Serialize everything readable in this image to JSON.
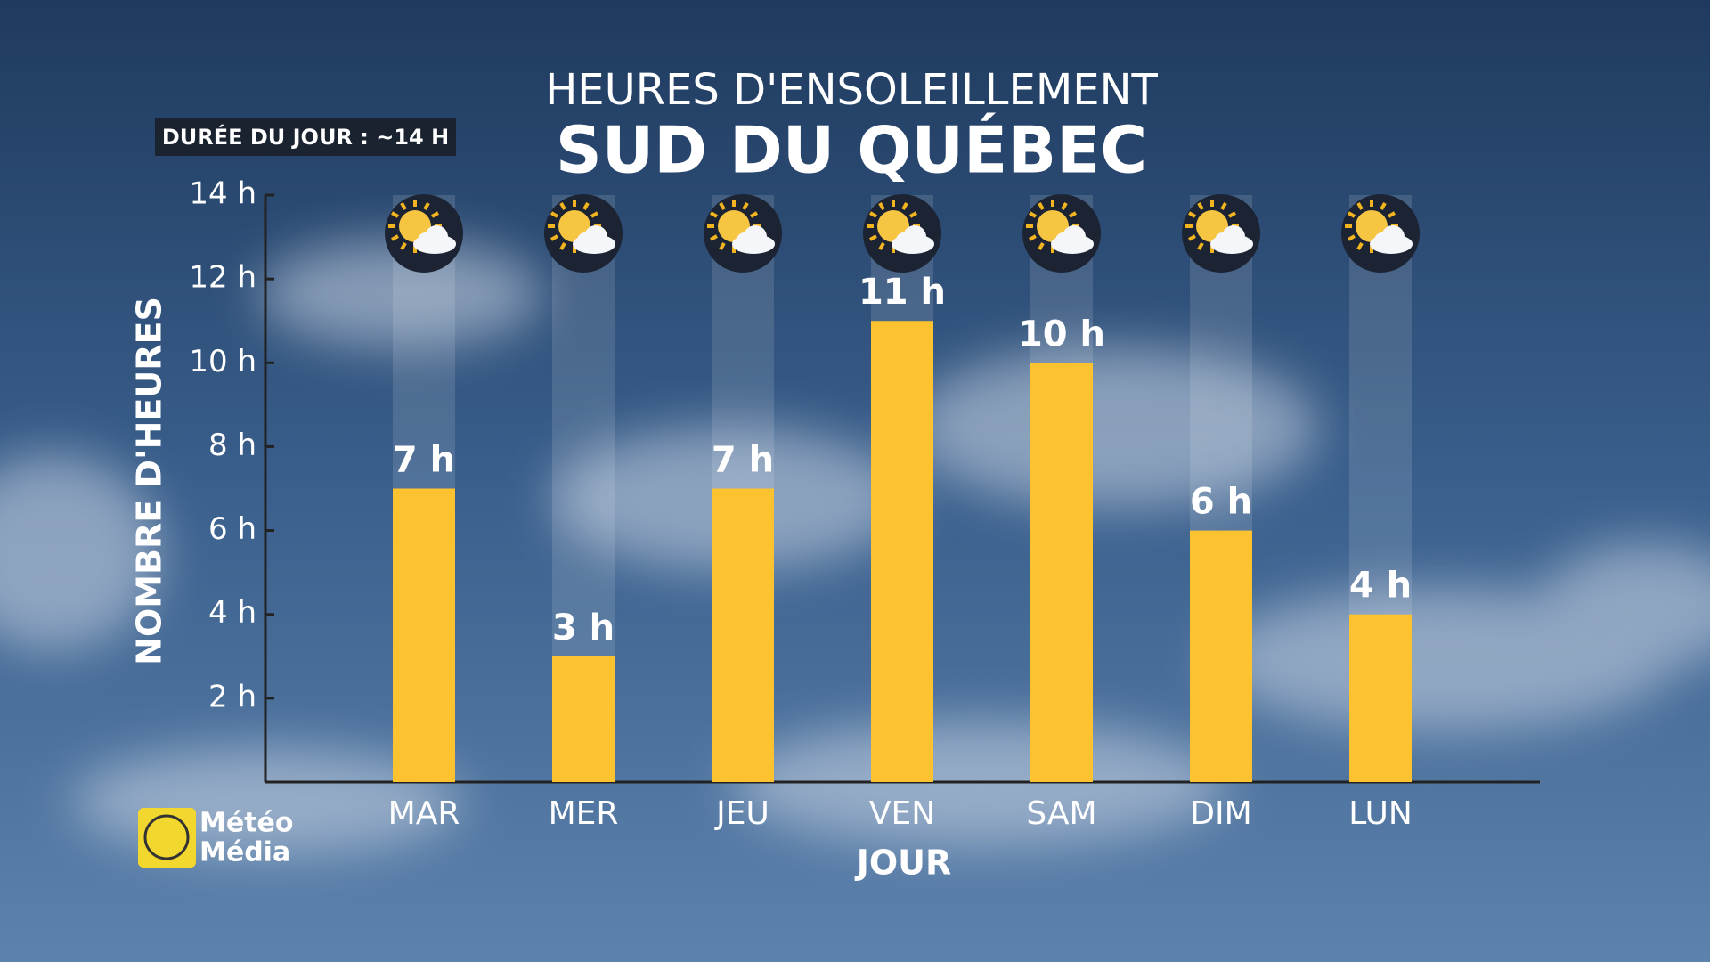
{
  "chart_data": {
    "type": "bar",
    "title": "HEURES D'ENSOLEILLEMENT",
    "subtitle": "SUD DU QUÉBEC",
    "annotation": "DURÉE DU JOUR : ~14 H",
    "y_label": "NOMBRE D'HEURES",
    "x_label": "JOUR",
    "categories": [
      "MAR",
      "MER",
      "JEU",
      "VEN",
      "SAM",
      "DIM",
      "LUN"
    ],
    "values": [
      7,
      3,
      7,
      11,
      10,
      6,
      4
    ],
    "value_labels": [
      "7 h",
      "3 h",
      "7 h",
      "11 h",
      "10 h",
      "6 h",
      "4 h"
    ],
    "color": "#fcc22f",
    "ylim": [
      0,
      14
    ],
    "yticks": [
      {
        "value": 2,
        "label": "2 h"
      },
      {
        "value": 4,
        "label": "4 h"
      },
      {
        "value": 6,
        "label": "6 h"
      },
      {
        "value": 8,
        "label": "8 h"
      },
      {
        "value": 10,
        "label": "10 h"
      },
      {
        "value": 12,
        "label": "12 h"
      },
      {
        "value": 14,
        "label": "14 h"
      }
    ]
  },
  "logo": {
    "lines": [
      "Météo",
      "Média"
    ]
  }
}
